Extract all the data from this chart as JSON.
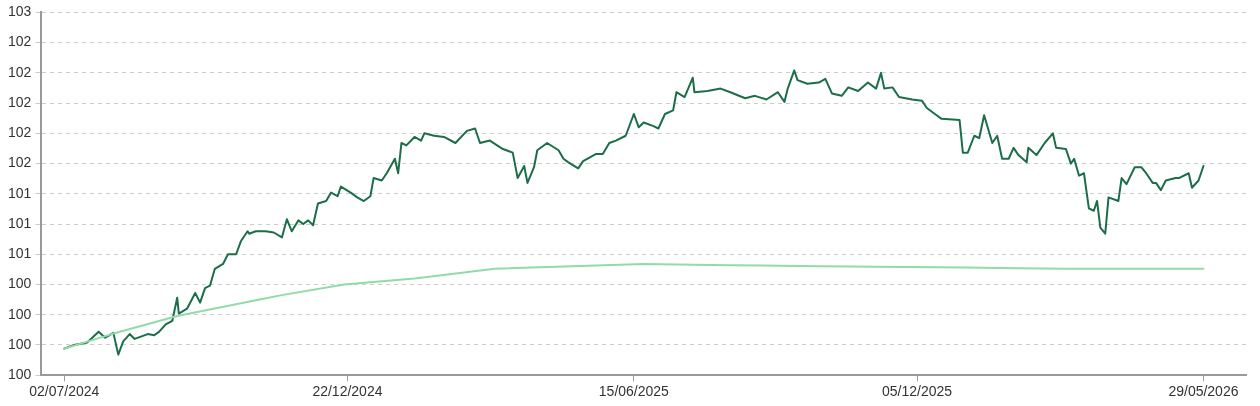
{
  "chart_data": {
    "type": "line",
    "marker": "none",
    "line_style": "solid",
    "grid": "y",
    "legend": false,
    "xlim": [
      "2024-06-18",
      "2026-06-24"
    ],
    "xticks": [
      {
        "value": "2024-07-02",
        "label": "02/07/2024"
      },
      {
        "value": "2024-12-22",
        "label": "22/12/2024"
      },
      {
        "value": "2025-06-15",
        "label": "15/06/2025"
      },
      {
        "value": "2025-12-05",
        "label": "05/12/2025"
      },
      {
        "value": "2026-05-29",
        "label": "29/05/2026"
      }
    ],
    "ylim": [
      99.75,
      102.75
    ],
    "yticks": [
      {
        "value": 99.75,
        "label": "100"
      },
      {
        "value": 100,
        "label": "100"
      },
      {
        "value": 100.25,
        "label": "100"
      },
      {
        "value": 100.5,
        "label": "100"
      },
      {
        "value": 100.75,
        "label": "101"
      },
      {
        "value": 101,
        "label": "101"
      },
      {
        "value": 101.25,
        "label": "101"
      },
      {
        "value": 101.5,
        "label": "102"
      },
      {
        "value": 101.75,
        "label": "102"
      },
      {
        "value": 102,
        "label": "102"
      },
      {
        "value": 102.25,
        "label": "102"
      },
      {
        "value": 102.5,
        "label": "102"
      },
      {
        "value": 102.75,
        "label": "103"
      }
    ],
    "series": [
      {
        "color": "#90dba8",
        "x": [
          "2024-07-02",
          "2024-07-31",
          "2024-09-09",
          "2024-11-11",
          "2024-12-20",
          "2025-02-01",
          "2025-03-22",
          "2025-06-21",
          "2025-08-13",
          "2025-10-06",
          "2026-01-04",
          "2026-03-07",
          "2026-05-29"
        ],
        "values": [
          99.97,
          100.09,
          100.24,
          100.41,
          100.5,
          100.55,
          100.63,
          100.67,
          100.66,
          100.65,
          100.64,
          100.63,
          100.63
        ]
      },
      {
        "color": "#1b6e48",
        "x": [
          "2024-07-02",
          "2024-07-08",
          "2024-07-16",
          "2024-07-23",
          "2024-07-27",
          "2024-08-01",
          "2024-08-04",
          "2024-08-07",
          "2024-08-11",
          "2024-08-14",
          "2024-08-22",
          "2024-08-26",
          "2024-08-29",
          "2024-09-02",
          "2024-09-06",
          "2024-09-09",
          "2024-09-10",
          "2024-09-15",
          "2024-09-20",
          "2024-09-23",
          "2024-09-26",
          "2024-09-29",
          "2024-10-02",
          "2024-10-07",
          "2024-10-10",
          "2024-10-15",
          "2024-10-18",
          "2024-10-22",
          "2024-10-23",
          "2024-10-27",
          "2024-11-02",
          "2024-11-07",
          "2024-11-12",
          "2024-11-15",
          "2024-11-18",
          "2024-11-22",
          "2024-11-25",
          "2024-11-28",
          "2024-12-01",
          "2024-12-04",
          "2024-12-09",
          "2024-12-12",
          "2024-12-16",
          "2024-12-18",
          "2024-12-24",
          "2024-12-28",
          "2025-01-01",
          "2025-01-05",
          "2025-01-07",
          "2025-01-12",
          "2025-01-15",
          "2025-01-20",
          "2025-01-22",
          "2025-01-24",
          "2025-01-27",
          "2025-02-01",
          "2025-02-05",
          "2025-02-07",
          "2025-02-13",
          "2025-02-19",
          "2025-02-26",
          "2025-03-05",
          "2025-03-10",
          "2025-03-13",
          "2025-03-19",
          "2025-03-27",
          "2025-04-02",
          "2025-04-05",
          "2025-04-09",
          "2025-04-11",
          "2025-04-15",
          "2025-04-17",
          "2025-04-23",
          "2025-04-30",
          "2025-05-03",
          "2025-05-06",
          "2025-05-12",
          "2025-05-15",
          "2025-05-23",
          "2025-05-27",
          "2025-05-31",
          "2025-06-04",
          "2025-06-10",
          "2025-06-15",
          "2025-06-18",
          "2025-06-21",
          "2025-06-27",
          "2025-06-30",
          "2025-07-04",
          "2025-07-09",
          "2025-07-11",
          "2025-07-16",
          "2025-07-21",
          "2025-07-22",
          "2025-07-30",
          "2025-08-07",
          "2025-08-13",
          "2025-08-22",
          "2025-08-28",
          "2025-09-04",
          "2025-09-11",
          "2025-09-15",
          "2025-09-17",
          "2025-09-21",
          "2025-09-23",
          "2025-09-29",
          "2025-10-06",
          "2025-10-10",
          "2025-10-14",
          "2025-10-20",
          "2025-10-24",
          "2025-10-30",
          "2025-11-05",
          "2025-11-10",
          "2025-11-13",
          "2025-11-15",
          "2025-11-20",
          "2025-11-24",
          "2025-12-02",
          "2025-12-08",
          "2025-12-11",
          "2025-12-17",
          "2025-12-20",
          "2025-12-31",
          "2026-01-02",
          "2026-01-05",
          "2026-01-09",
          "2026-01-12",
          "2026-01-15",
          "2026-01-20",
          "2026-01-23",
          "2026-01-26",
          "2026-01-30",
          "2026-02-02",
          "2026-02-05",
          "2026-02-10",
          "2026-02-11",
          "2026-02-16",
          "2026-02-21",
          "2026-02-26",
          "2026-02-28",
          "2026-03-06",
          "2026-03-09",
          "2026-03-11",
          "2026-03-14",
          "2026-03-17",
          "2026-03-20",
          "2026-03-23",
          "2026-03-25",
          "2026-03-27",
          "2026-03-30",
          "2026-04-01",
          "2026-04-07",
          "2026-04-09",
          "2026-04-12",
          "2026-04-17",
          "2026-04-21",
          "2026-04-24",
          "2026-04-28",
          "2026-04-30",
          "2026-05-03",
          "2026-05-06",
          "2026-05-12",
          "2026-05-14",
          "2026-05-20",
          "2026-05-22",
          "2026-05-26",
          "2026-05-29"
        ],
        "values": [
          99.97,
          100,
          100.02,
          100.11,
          100.06,
          100.1,
          99.92,
          100.03,
          100.09,
          100.05,
          100.09,
          100.08,
          100.11,
          100.17,
          100.2,
          100.39,
          100.26,
          100.3,
          100.43,
          100.35,
          100.47,
          100.49,
          100.63,
          100.67,
          100.75,
          100.75,
          100.86,
          100.94,
          100.92,
          100.94,
          100.94,
          100.93,
          100.89,
          101.04,
          100.94,
          101.03,
          101,
          101.03,
          100.99,
          101.17,
          101.19,
          101.26,
          101.23,
          101.31,
          101.26,
          101.22,
          101.19,
          101.23,
          101.38,
          101.36,
          101.42,
          101.54,
          101.42,
          101.67,
          101.65,
          101.72,
          101.69,
          101.75,
          101.73,
          101.72,
          101.67,
          101.77,
          101.79,
          101.67,
          101.69,
          101.62,
          101.59,
          101.38,
          101.48,
          101.34,
          101.47,
          101.61,
          101.67,
          101.61,
          101.54,
          101.51,
          101.46,
          101.52,
          101.58,
          101.58,
          101.67,
          101.69,
          101.73,
          101.91,
          101.8,
          101.84,
          101.81,
          101.79,
          101.91,
          101.94,
          102.09,
          102.05,
          102.21,
          102.09,
          102.1,
          102.12,
          102.09,
          102.04,
          102.06,
          102.03,
          102.09,
          102.01,
          102.12,
          102.27,
          102.19,
          102.16,
          102.17,
          102.2,
          102.08,
          102.06,
          102.13,
          102.1,
          102.17,
          102.12,
          102.25,
          102.12,
          102.13,
          102.05,
          102.03,
          102.02,
          101.96,
          101.9,
          101.87,
          101.86,
          101.59,
          101.59,
          101.73,
          101.71,
          101.9,
          101.67,
          101.73,
          101.54,
          101.54,
          101.63,
          101.57,
          101.51,
          101.63,
          101.57,
          101.67,
          101.75,
          101.63,
          101.62,
          101.5,
          101.54,
          101.4,
          101.42,
          101.13,
          101.11,
          101.19,
          100.97,
          100.92,
          101.22,
          101.19,
          101.38,
          101.33,
          101.47,
          101.47,
          101.42,
          101.34,
          101.34,
          101.28,
          101.36,
          101.38,
          101.38,
          101.42,
          101.3,
          101.36,
          101.48
        ]
      }
    ]
  }
}
